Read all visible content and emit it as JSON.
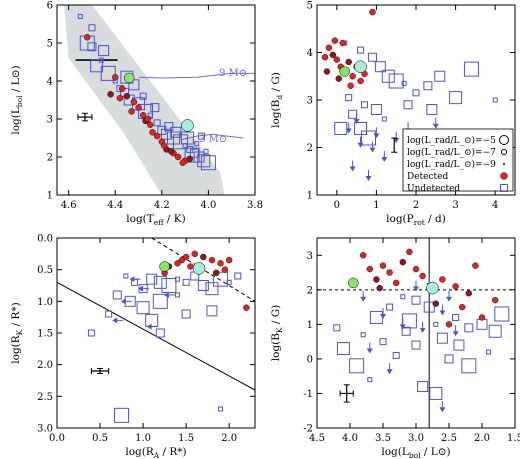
{
  "colors": {
    "detected": "#d62728",
    "detected_small": "#8b1a1a",
    "undetected": "#4a57c7",
    "track": "#6a6adb",
    "band": "#d8dcdc",
    "green": "#88e36a",
    "cyan": "#a6ecdc",
    "axis": "#000000"
  },
  "chart_data": [
    {
      "id": "hrd",
      "type": "scatter",
      "xlabel": "log(T",
      "xlabel_sub": "eff",
      "xlabel_tail": " / K)",
      "ylabel": "log(L",
      "ylabel_sub": "bol",
      "ylabel_tail": " / L⊙)",
      "xlim": [
        4.65,
        3.8
      ],
      "ylim": [
        1.0,
        6.0
      ],
      "xticks": [
        "4.6",
        "4.4",
        "4.2",
        "4.0",
        "3.8"
      ],
      "yticks": [
        "1",
        "2",
        "3",
        "4",
        "5",
        "6"
      ],
      "annotations": [
        "9 M⊙",
        "3 M⊙"
      ],
      "detected": [
        [
          4.52,
          5.15
        ],
        [
          4.4,
          4.1
        ],
        [
          4.37,
          3.8
        ],
        [
          4.35,
          3.6
        ],
        [
          4.32,
          3.45
        ],
        [
          4.3,
          3.3
        ],
        [
          4.28,
          3.1
        ],
        [
          4.27,
          2.95
        ],
        [
          4.25,
          2.85
        ],
        [
          4.22,
          2.55
        ],
        [
          4.2,
          2.4
        ],
        [
          4.18,
          2.2
        ],
        [
          4.15,
          2.1
        ],
        [
          4.13,
          2.0
        ],
        [
          4.1,
          1.9
        ],
        [
          4.42,
          3.65
        ],
        [
          4.38,
          3.55
        ],
        [
          4.26,
          3.0
        ],
        [
          4.19,
          2.3
        ],
        [
          4.16,
          2.15
        ],
        [
          4.24,
          2.65
        ],
        [
          4.33,
          3.2
        ],
        [
          4.11,
          1.85
        ],
        [
          4.08,
          1.95
        ]
      ],
      "undetected": [
        [
          4.55,
          5.7
        ],
        [
          4.5,
          5.4
        ],
        [
          4.5,
          4.9
        ],
        [
          4.45,
          4.8
        ],
        [
          4.48,
          4.4
        ],
        [
          4.43,
          4.2
        ],
        [
          4.4,
          4.0
        ],
        [
          4.38,
          3.8
        ],
        [
          4.36,
          3.7
        ],
        [
          4.34,
          3.5
        ],
        [
          4.3,
          3.4
        ],
        [
          4.27,
          3.2
        ],
        [
          4.25,
          3.1
        ],
        [
          4.22,
          2.9
        ],
        [
          4.2,
          2.7
        ],
        [
          4.18,
          2.6
        ],
        [
          4.15,
          2.5
        ],
        [
          4.12,
          2.4
        ],
        [
          4.1,
          2.3
        ],
        [
          4.08,
          2.2
        ],
        [
          4.06,
          2.1
        ],
        [
          4.04,
          2.0
        ],
        [
          4.02,
          1.9
        ],
        [
          4.0,
          1.85
        ],
        [
          4.05,
          2.35
        ],
        [
          4.03,
          2.55
        ],
        [
          4.17,
          2.8
        ],
        [
          4.32,
          3.9
        ],
        [
          4.35,
          4.1
        ],
        [
          4.52,
          5.0
        ],
        [
          4.46,
          4.55
        ],
        [
          4.28,
          3.6
        ],
        [
          4.23,
          3.3
        ],
        [
          4.14,
          2.65
        ],
        [
          4.09,
          2.5
        ],
        [
          4.07,
          2.05
        ],
        [
          4.01,
          2.15
        ]
      ],
      "green": [
        [
          4.34,
          4.08
        ]
      ],
      "cyan": [
        [
          4.09,
          2.83
        ]
      ],
      "errorbar": {
        "x": 4.53,
        "y": 3.05,
        "dx": 0.03,
        "dy": 0.1
      }
    },
    {
      "id": "prot",
      "type": "scatter",
      "xlabel": "log(P",
      "xlabel_sub": "rot",
      "xlabel_tail": " / d)",
      "ylabel": "log(B",
      "ylabel_sub": "d",
      "ylabel_tail": " / G)",
      "xlim": [
        -0.5,
        4.5
      ],
      "ylim": [
        1.0,
        5.0
      ],
      "xticks": [
        "0",
        "1",
        "2",
        "3",
        "4"
      ],
      "yticks": [
        "1",
        "2",
        "3",
        "4",
        "5"
      ],
      "legend": [
        "log(L_rad/L_⊙)=−5",
        "log(L_rad/L_⊙)=−7",
        "log(L_rad/L_⊙)=−9",
        "Detected",
        "Undetected"
      ],
      "detected": [
        [
          0.9,
          4.85
        ],
        [
          -0.3,
          3.9
        ],
        [
          -0.2,
          4.1
        ],
        [
          -0.1,
          3.95
        ],
        [
          0.0,
          3.85
        ],
        [
          0.1,
          3.7
        ],
        [
          0.2,
          3.6
        ],
        [
          0.3,
          3.8
        ],
        [
          0.4,
          3.5
        ],
        [
          0.5,
          3.7
        ],
        [
          0.6,
          3.4
        ],
        [
          -0.25,
          3.6
        ],
        [
          0.15,
          4.2
        ],
        [
          0.35,
          3.3
        ],
        [
          0.7,
          3.55
        ],
        [
          0.05,
          3.45
        ],
        [
          -0.05,
          4.25
        ]
      ],
      "undetected": [
        [
          0.2,
          4.2
        ],
        [
          0.6,
          4.05
        ],
        [
          0.9,
          3.9
        ],
        [
          1.1,
          3.7
        ],
        [
          1.3,
          3.5
        ],
        [
          1.5,
          3.4
        ],
        [
          1.7,
          3.35
        ],
        [
          2.0,
          3.15
        ],
        [
          2.3,
          3.3
        ],
        [
          2.6,
          3.5
        ],
        [
          3.0,
          3.05
        ],
        [
          3.4,
          3.65
        ],
        [
          4.0,
          3.0
        ],
        [
          0.7,
          2.9
        ],
        [
          0.4,
          2.7
        ],
        [
          1.0,
          2.8
        ],
        [
          0.6,
          2.4
        ],
        [
          0.8,
          2.2
        ],
        [
          1.2,
          2.6
        ],
        [
          0.3,
          3.05
        ],
        [
          1.8,
          2.9
        ],
        [
          2.4,
          2.8
        ],
        [
          0.1,
          2.4
        ]
      ],
      "upper_limits": [
        [
          0.3,
          2.4
        ],
        [
          0.6,
          2.1
        ],
        [
          0.9,
          2.0
        ],
        [
          1.2,
          1.8
        ],
        [
          0.4,
          1.6
        ],
        [
          1.0,
          2.3
        ],
        [
          1.5,
          2.2
        ],
        [
          2.0,
          2.0
        ],
        [
          2.5,
          2.5
        ],
        [
          0.8,
          1.4
        ],
        [
          0.5,
          2.6
        ],
        [
          1.8,
          2.4
        ]
      ],
      "green": [
        [
          0.2,
          3.6
        ]
      ],
      "cyan": [
        [
          0.6,
          3.7
        ]
      ],
      "errorbar": {
        "x": 1.45,
        "y": 2.05,
        "dx": 0,
        "dy": 0.15
      }
    },
    {
      "id": "radii",
      "type": "scatter",
      "xlabel": "log(R",
      "xlabel_sub": "A",
      "xlabel_tail": " / R*)",
      "ylabel": "log(R",
      "ylabel_sub": "K",
      "ylabel_tail": " / R*)",
      "xlim": [
        0.0,
        2.3
      ],
      "ylim": [
        3.0,
        0.0
      ],
      "xticks": [
        "0.0",
        "0.5",
        "1.0",
        "1.5",
        "2.0"
      ],
      "yticks": [
        "0.0",
        "0.5",
        "1.0",
        "1.5",
        "2.0",
        "2.5",
        "3.0"
      ],
      "detected": [
        [
          1.4,
          0.4
        ],
        [
          1.5,
          0.3
        ],
        [
          1.6,
          0.25
        ],
        [
          1.7,
          0.3
        ],
        [
          1.8,
          0.35
        ],
        [
          1.9,
          0.4
        ],
        [
          2.0,
          0.35
        ],
        [
          1.3,
          0.45
        ],
        [
          1.55,
          0.45
        ],
        [
          2.2,
          1.1
        ],
        [
          1.95,
          0.5
        ],
        [
          1.85,
          0.55
        ],
        [
          1.25,
          0.55
        ],
        [
          1.45,
          0.35
        ]
      ],
      "undetected": [
        [
          0.8,
          0.6
        ],
        [
          0.9,
          0.7
        ],
        [
          1.0,
          0.8
        ],
        [
          1.1,
          0.65
        ],
        [
          1.2,
          0.7
        ],
        [
          1.3,
          0.75
        ],
        [
          1.4,
          0.65
        ],
        [
          1.5,
          0.7
        ],
        [
          1.6,
          0.6
        ],
        [
          1.7,
          0.75
        ],
        [
          1.8,
          0.8
        ],
        [
          1.9,
          0.65
        ],
        [
          2.0,
          0.7
        ],
        [
          2.1,
          0.6
        ],
        [
          0.7,
          0.9
        ],
        [
          0.85,
          1.0
        ],
        [
          1.0,
          1.1
        ],
        [
          1.2,
          1.0
        ],
        [
          1.4,
          0.9
        ],
        [
          0.6,
          1.2
        ],
        [
          1.5,
          1.2
        ],
        [
          1.8,
          1.15
        ],
        [
          1.1,
          1.3
        ],
        [
          0.75,
          2.8
        ],
        [
          1.9,
          2.7
        ],
        [
          0.4,
          1.5
        ],
        [
          1.2,
          1.5
        ]
      ],
      "left_limits": [
        [
          0.9,
          0.65
        ],
        [
          1.0,
          0.8
        ],
        [
          0.8,
          1.0
        ],
        [
          1.3,
          0.9
        ],
        [
          1.1,
          1.4
        ],
        [
          0.7,
          1.3
        ]
      ],
      "green": [
        [
          1.25,
          0.45
        ]
      ],
      "cyan": [
        [
          1.65,
          0.48
        ]
      ],
      "lines": [
        {
          "style": "solid",
          "x": [
            0.0,
            2.3
          ],
          "y": [
            0.7,
            2.4
          ]
        },
        {
          "style": "dashed",
          "x": [
            1.1,
            2.3
          ],
          "y": [
            0.0,
            1.0
          ]
        }
      ],
      "errorbar": {
        "x": 0.5,
        "y": 2.1,
        "dx": 0.1,
        "dy": 0.04
      }
    },
    {
      "id": "lbol",
      "type": "scatter",
      "xlabel": "log(L",
      "xlabel_sub": "bol",
      "xlabel_tail": " / L⊙)",
      "ylabel": "log(B",
      "ylabel_sub": "K",
      "ylabel_tail": " / G)",
      "xlim": [
        4.5,
        1.5
      ],
      "ylim": [
        -2.0,
        3.5
      ],
      "xticks": [
        "4.5",
        "4.0",
        "3.5",
        "3.0",
        "2.5",
        "2.0",
        "1.5"
      ],
      "yticks": [
        "-2",
        "-1",
        "0",
        "1",
        "2",
        "3"
      ],
      "detected": [
        [
          3.7,
          2.6
        ],
        [
          3.5,
          2.7
        ],
        [
          3.4,
          2.5
        ],
        [
          3.2,
          2.8
        ],
        [
          3.1,
          3.1
        ],
        [
          3.0,
          2.6
        ],
        [
          2.9,
          2.4
        ],
        [
          3.6,
          2.3
        ],
        [
          3.3,
          2.2
        ],
        [
          2.6,
          2.3
        ],
        [
          2.4,
          2.1
        ],
        [
          2.2,
          1.9
        ],
        [
          2.1,
          2.7
        ],
        [
          2.5,
          1.0
        ],
        [
          2.3,
          1.5
        ],
        [
          2.7,
          1.6
        ],
        [
          1.8,
          1.7
        ],
        [
          2.0,
          1.2
        ],
        [
          3.8,
          3.0
        ],
        [
          3.55,
          2.05
        ]
      ],
      "undetected": [
        [
          3.2,
          1.8
        ],
        [
          3.4,
          1.5
        ],
        [
          3.0,
          1.7
        ],
        [
          2.8,
          1.5
        ],
        [
          3.6,
          1.2
        ],
        [
          3.1,
          1.1
        ],
        [
          2.7,
          1.0
        ],
        [
          2.4,
          1.2
        ],
        [
          2.2,
          0.9
        ],
        [
          2.0,
          1.0
        ],
        [
          1.8,
          0.8
        ],
        [
          1.7,
          1.3
        ],
        [
          3.8,
          0.7
        ],
        [
          3.5,
          0.5
        ],
        [
          3.0,
          0.4
        ],
        [
          2.6,
          0.6
        ],
        [
          4.1,
          0.3
        ],
        [
          3.9,
          -0.2
        ],
        [
          3.7,
          -0.6
        ],
        [
          3.3,
          0.1
        ],
        [
          2.5,
          0.0
        ],
        [
          2.9,
          -0.8
        ],
        [
          2.7,
          -1.0
        ],
        [
          2.2,
          -0.2
        ],
        [
          1.9,
          0.2
        ],
        [
          4.2,
          0.9
        ],
        [
          3.15,
          0.8
        ],
        [
          2.35,
          0.4
        ]
      ],
      "upper_limits": [
        [
          3.8,
          1.8
        ],
        [
          3.5,
          1.3
        ],
        [
          3.2,
          1.0
        ],
        [
          2.9,
          0.9
        ],
        [
          2.6,
          1.4
        ],
        [
          3.0,
          2.1
        ],
        [
          2.5,
          1.8
        ],
        [
          2.8,
          2.2
        ],
        [
          3.7,
          0.3
        ],
        [
          3.4,
          -0.3
        ],
        [
          2.6,
          -1.4
        ],
        [
          2.4,
          0.8
        ]
      ],
      "green": [
        [
          3.95,
          2.2
        ]
      ],
      "cyan": [
        [
          2.75,
          2.05
        ]
      ],
      "hline": 2.0,
      "vline": 2.8,
      "errorbar": {
        "x": 4.05,
        "y": -1.0,
        "dx": 0.1,
        "dy": 0.25
      }
    }
  ]
}
